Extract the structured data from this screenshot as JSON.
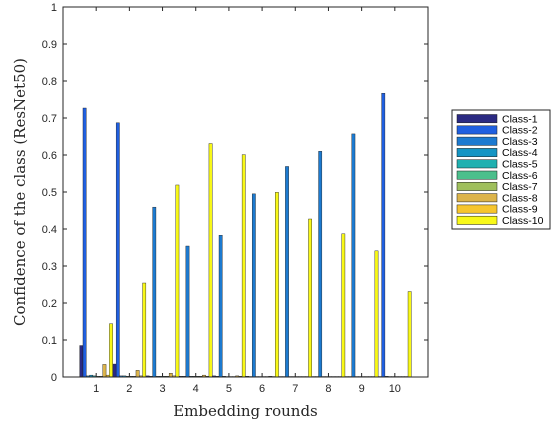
{
  "chart_data": {
    "type": "bar",
    "xlabel": "Embedding rounds",
    "ylabel": "Confidence of the class (ResNet50)",
    "categories": [
      "1",
      "2",
      "3",
      "4",
      "5",
      "6",
      "7",
      "8",
      "9",
      "10"
    ],
    "ylim": [
      0,
      1
    ],
    "yticks": [
      "0",
      "0.1",
      "0.2",
      "0.3",
      "0.4",
      "0.5",
      "0.6",
      "0.7",
      "0.8",
      "0.9",
      "1"
    ],
    "legend_position": "right-outside",
    "grid": false,
    "series": [
      {
        "name": "Class-1",
        "color": "#2b2a82",
        "values": [
          0.085,
          0.035,
          0.003,
          0.002,
          0.003,
          0.002,
          0.001,
          0.001,
          0.001,
          0.001
        ]
      },
      {
        "name": "Class-2",
        "color": "#1f5fe0",
        "values": [
          0.727,
          0.687,
          0.002,
          0.002,
          0.002,
          0.001,
          0.001,
          0.001,
          0.001,
          0.767
        ]
      },
      {
        "name": "Class-3",
        "color": "#1c7ad0",
        "values": [
          0.003,
          0.003,
          0.459,
          0.354,
          0.383,
          0.495,
          0.569,
          0.61,
          0.657,
          0.002
        ]
      },
      {
        "name": "Class-4",
        "color": "#1595c4",
        "values": [
          0.005,
          0.003,
          0.002,
          0.002,
          0.002,
          0.001,
          0.001,
          0.001,
          0.001,
          0.001
        ]
      },
      {
        "name": "Class-5",
        "color": "#1fb0b0",
        "values": [
          0.003,
          0.002,
          0.002,
          0.002,
          0.001,
          0.001,
          0.001,
          0.001,
          0.001,
          0.001
        ]
      },
      {
        "name": "Class-6",
        "color": "#4cbf8c",
        "values": [
          0.002,
          0.002,
          0.002,
          0.002,
          0.001,
          0.001,
          0.001,
          0.001,
          0.001,
          0.001
        ]
      },
      {
        "name": "Class-7",
        "color": "#9fbf5c",
        "values": [
          0.002,
          0.002,
          0.002,
          0.002,
          0.001,
          0.001,
          0.001,
          0.001,
          0.001,
          0.001
        ]
      },
      {
        "name": "Class-8",
        "color": "#dcb44a",
        "values": [
          0.034,
          0.018,
          0.01,
          0.005,
          0.003,
          0.002,
          0.001,
          0.001,
          0.001,
          0.001
        ]
      },
      {
        "name": "Class-9",
        "color": "#f6c52e",
        "values": [
          0.005,
          0.003,
          0.003,
          0.002,
          0.002,
          0.001,
          0.001,
          0.001,
          0.001,
          0.001
        ]
      },
      {
        "name": "Class-10",
        "color": "#f8f818",
        "values": [
          0.144,
          0.254,
          0.519,
          0.631,
          0.601,
          0.499,
          0.427,
          0.387,
          0.341,
          0.231
        ]
      }
    ]
  }
}
